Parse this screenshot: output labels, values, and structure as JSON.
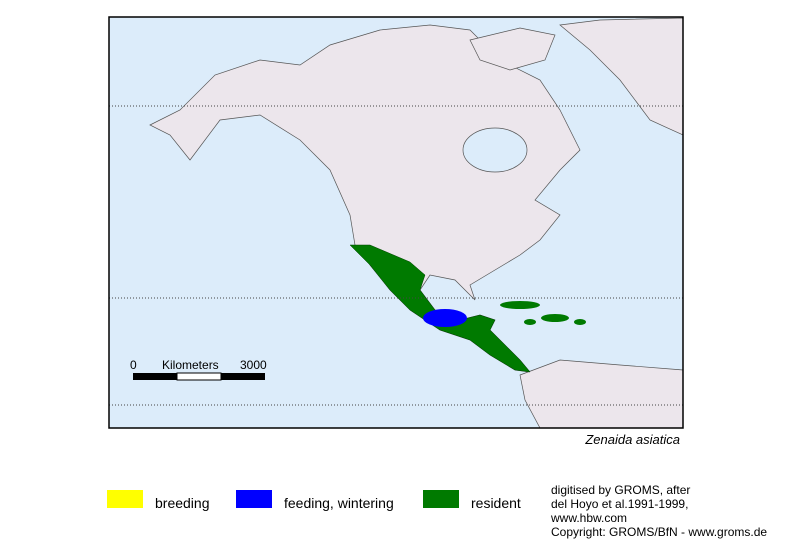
{
  "map": {
    "species": "Zenaida asiatica",
    "scale": {
      "start": 0,
      "unit": "Kilometers",
      "end": 3000
    }
  },
  "legend": [
    {
      "label": "breeding",
      "color": "#ffff00"
    },
    {
      "label": "feeding, wintering",
      "color": "#0000ff"
    },
    {
      "label": "resident",
      "color": "#007a00"
    }
  ],
  "credits": [
    "digitised by GROMS, after",
    "del Hoyo et al.1991-1999,",
    "www.hbw.com",
    "Copyright: GROMS/BfN - www.groms.de"
  ]
}
